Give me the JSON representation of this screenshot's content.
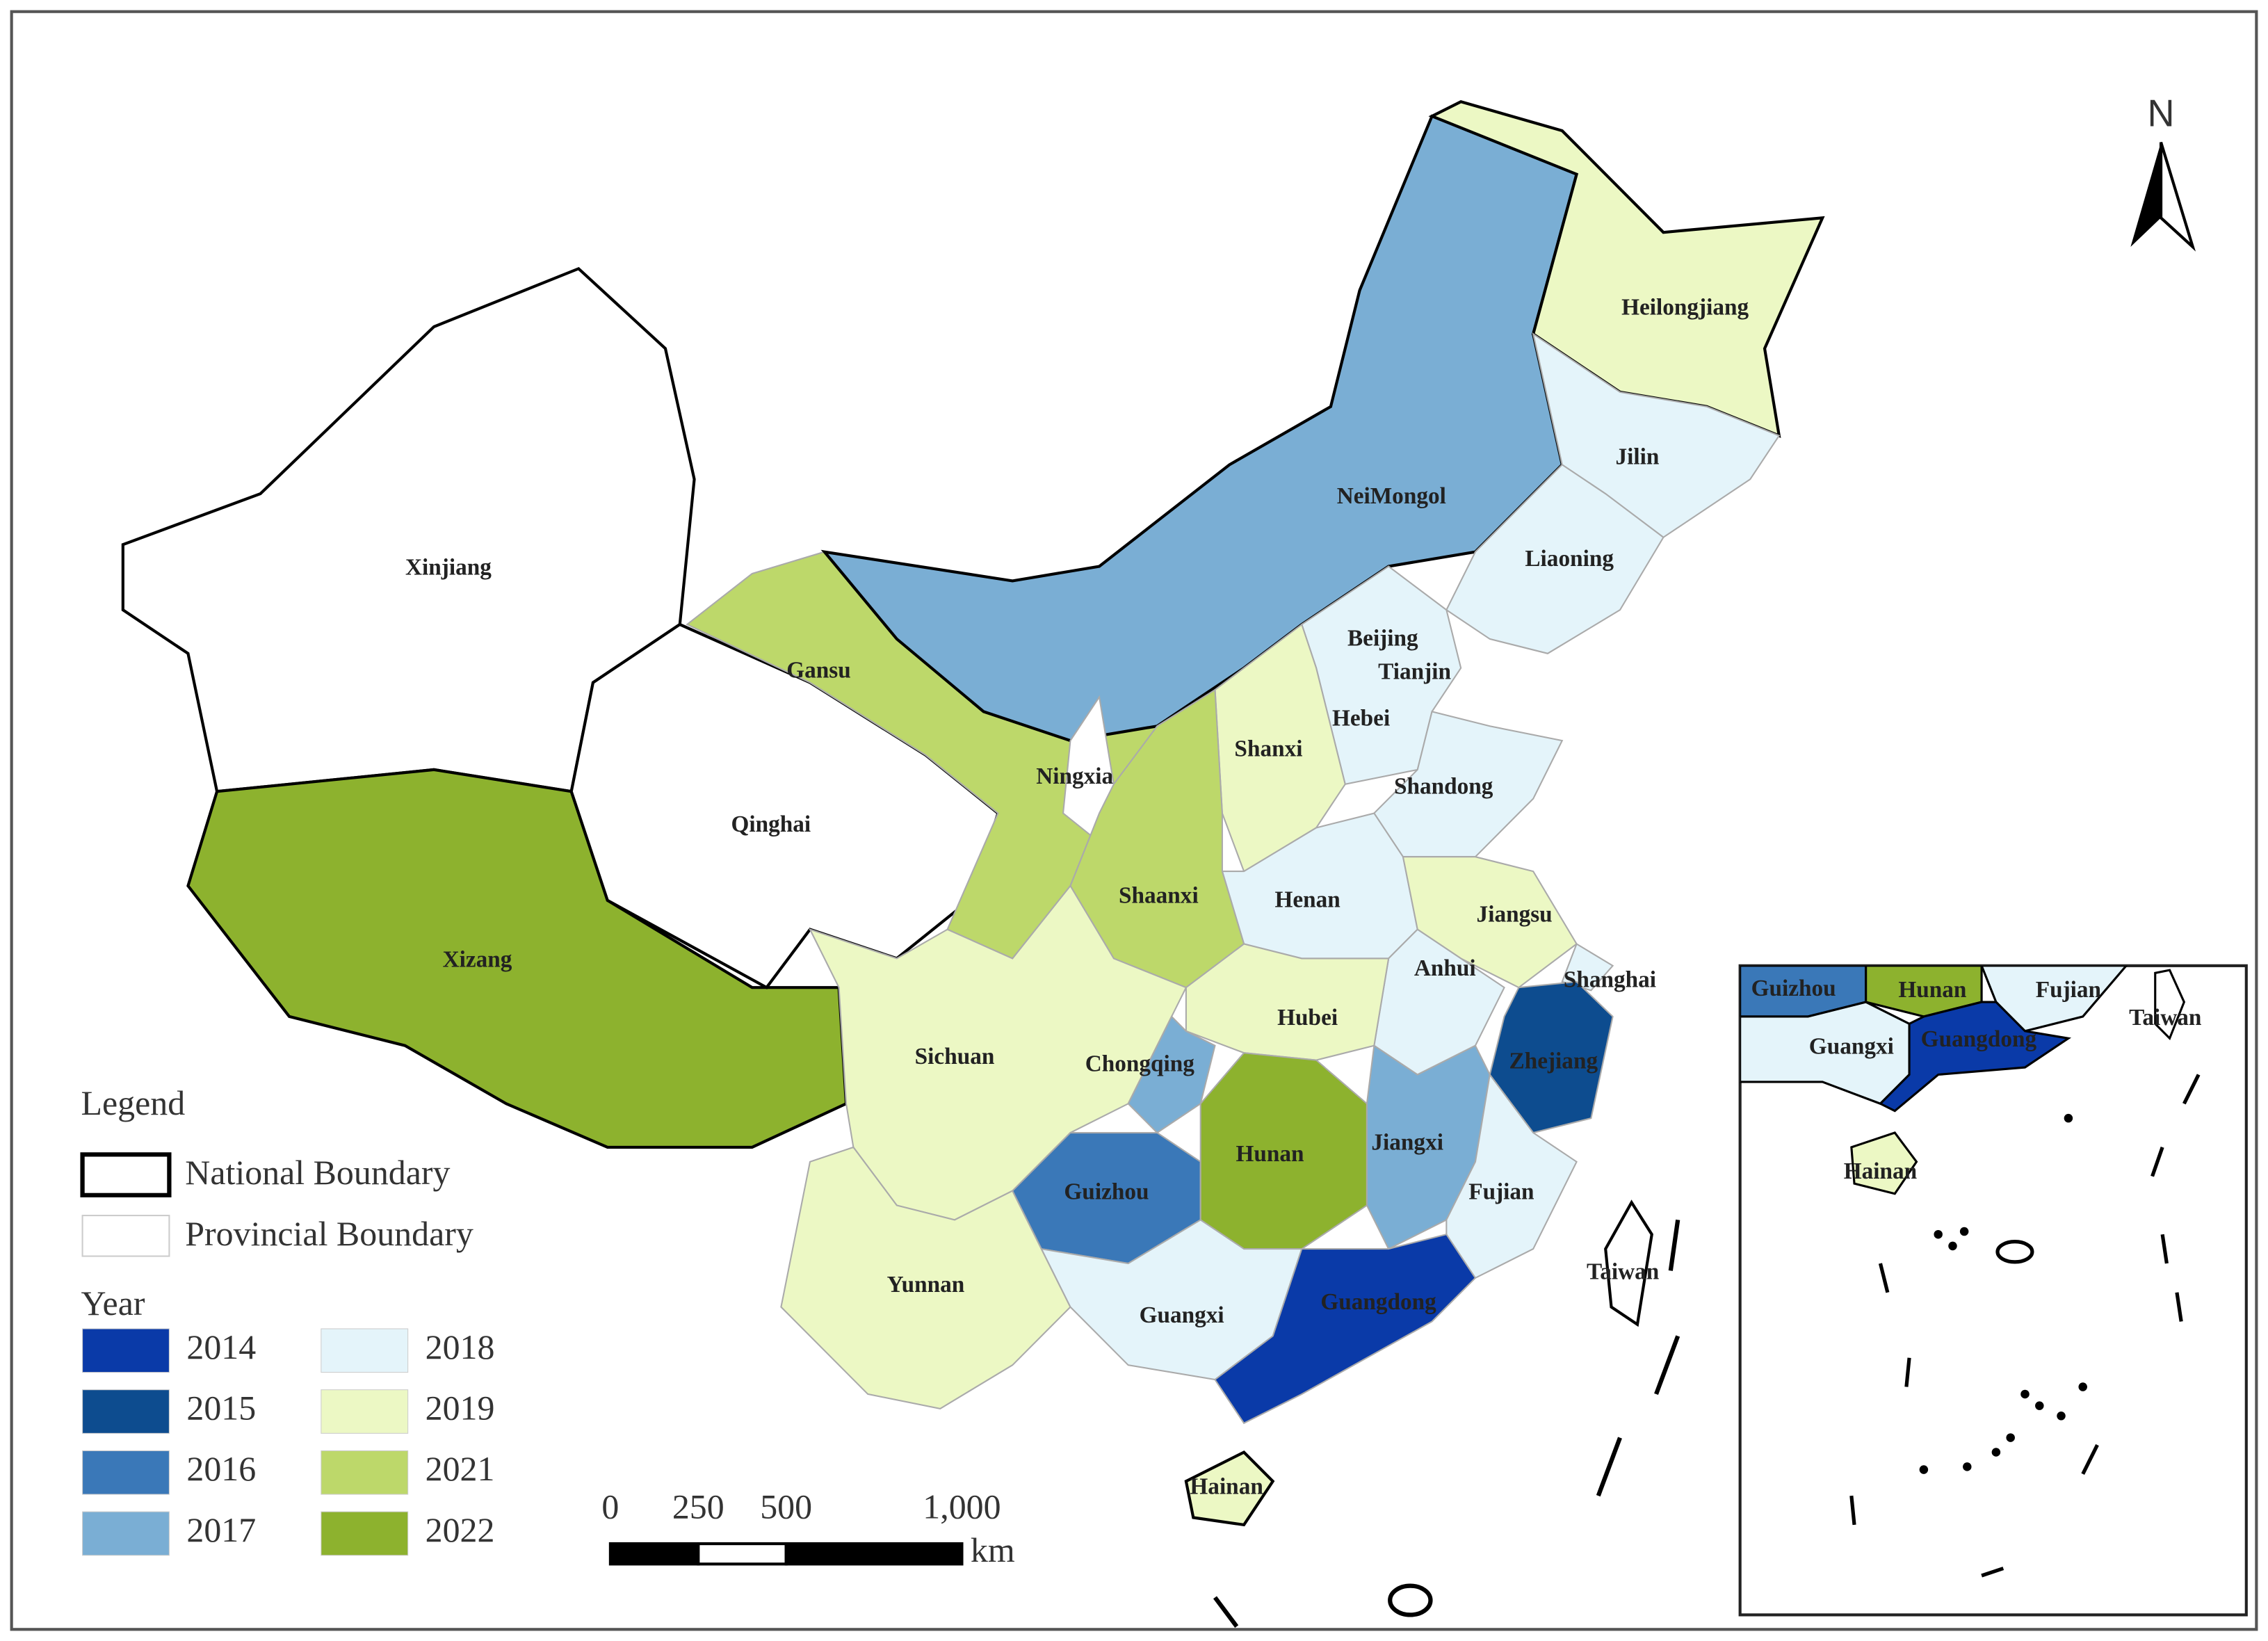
{
  "map": {
    "provinces": [
      {
        "label": "Xinjiang"
      },
      {
        "label": "Xizang",
        "year": 2022
      },
      {
        "label": "Qinghai"
      },
      {
        "label": "Gansu",
        "year": 2021
      },
      {
        "label": "NeiMongol",
        "year": 2017
      },
      {
        "label": "Ningxia"
      },
      {
        "label": "Heilongjiang",
        "year": 2019
      },
      {
        "label": "Jilin",
        "year": 2018
      },
      {
        "label": "Liaoning",
        "year": 2018
      },
      {
        "label": "Beijing",
        "year": 2018
      },
      {
        "label": "Tianjin",
        "year": 2018
      },
      {
        "label": "Hebei",
        "year": 2018
      },
      {
        "label": "Shanxi",
        "year": 2019
      },
      {
        "label": "Shandong",
        "year": 2018
      },
      {
        "label": "Henan",
        "year": 2018
      },
      {
        "label": "Shaanxi",
        "year": 2021
      },
      {
        "label": "Jiangsu",
        "year": 2019
      },
      {
        "label": "Anhui",
        "year": 2018
      },
      {
        "label": "Shanghai",
        "year": 2018
      },
      {
        "label": "Hubei",
        "year": 2019
      },
      {
        "label": "Zhejiang",
        "year": 2015
      },
      {
        "label": "Sichuan",
        "year": 2019
      },
      {
        "label": "Chongqing",
        "year": 2017
      },
      {
        "label": "Yunnan",
        "year": 2019
      },
      {
        "label": "Guizhou",
        "year": 2016
      },
      {
        "label": "Hunan",
        "year": 2022
      },
      {
        "label": "Jiangxi",
        "year": 2017
      },
      {
        "label": "Fujian",
        "year": 2018
      },
      {
        "label": "Guangxi",
        "year": 2018
      },
      {
        "label": "Guangdong",
        "year": 2014
      },
      {
        "label": "Hainan",
        "year": 2019
      },
      {
        "label": "Taiwan"
      }
    ],
    "north": "N",
    "legend": {
      "title": "Legend",
      "boundaries": [
        "National Boundary",
        "Provincial Boundary"
      ],
      "year_title": "Year",
      "years": [
        {
          "year": 2014,
          "color": "#0a3aa8"
        },
        {
          "year": 2015,
          "color": "#0d4c8f"
        },
        {
          "year": 2016,
          "color": "#3a78b8"
        },
        {
          "year": 2017,
          "color": "#7aaed4"
        },
        {
          "year": 2018,
          "color": "#e4f4fa"
        },
        {
          "year": 2019,
          "color": "#ecf8c4"
        },
        {
          "year": 2021,
          "color": "#bdd86a"
        },
        {
          "year": 2022,
          "color": "#8db22e"
        }
      ]
    },
    "scale_bar": {
      "ticks": [
        0,
        250,
        500,
        {
          "value": 1000,
          "label": "1,000"
        }
      ],
      "unit": "km"
    },
    "inset": {
      "labels": [
        "Guizhou",
        "Hunan",
        "Fujian",
        "Guangxi",
        "Guangdong",
        "Taiwan",
        "Hainan"
      ]
    }
  }
}
